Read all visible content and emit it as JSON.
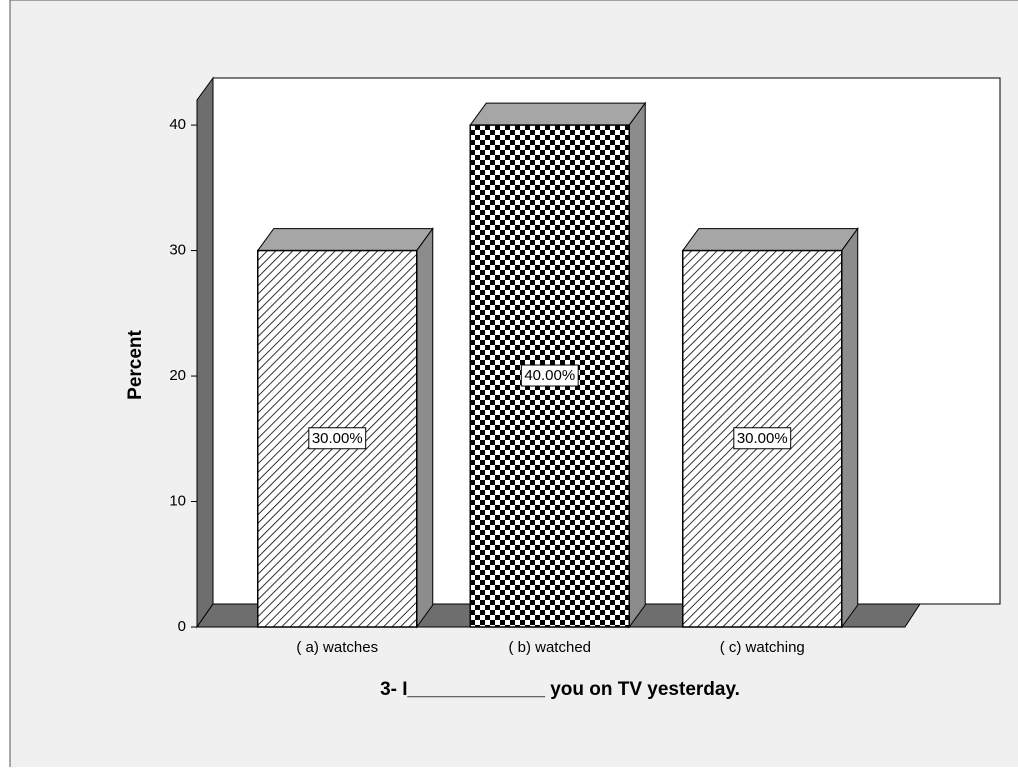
{
  "chart_data": {
    "type": "bar3d",
    "categories": [
      "( a) watches",
      "( b)  watched",
      "( c) watching"
    ],
    "values": [
      30,
      40,
      30
    ],
    "value_labels": [
      "30.00%",
      "40.00%",
      "30.00%"
    ],
    "patterns": [
      "hatch",
      "checker",
      "hatch"
    ],
    "color": "#000000",
    "x_label": "3- I_____________ you on TV yesterday.",
    "y_label": "Percent",
    "ylim": [
      0,
      42
    ],
    "yticks": [
      0,
      10,
      20,
      30,
      40
    ]
  }
}
